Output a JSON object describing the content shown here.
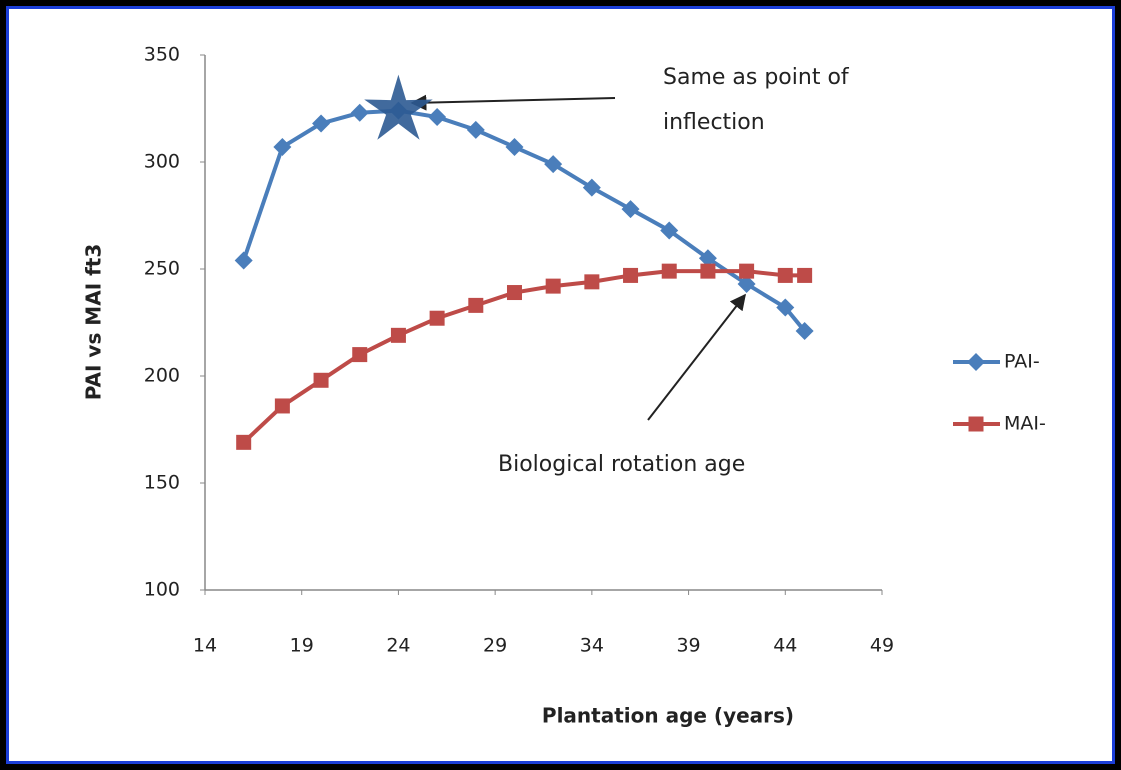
{
  "chart_data": {
    "type": "line",
    "x_label": "Plantation age (years)",
    "y_label": "PAI vs MAI ft3",
    "x": [
      16,
      18,
      20,
      22,
      24,
      26,
      28,
      30,
      32,
      34,
      36,
      38,
      40,
      42,
      44,
      45
    ],
    "series": [
      {
        "name": "PAI-",
        "color": "#4a7ebb",
        "marker": "diamond",
        "values": [
          254,
          307,
          318,
          323,
          324,
          321,
          315,
          307,
          299,
          288,
          278,
          268,
          255,
          243,
          232,
          221
        ]
      },
      {
        "name": "MAI-",
        "color": "#be4b48",
        "marker": "square",
        "values": [
          169,
          186,
          198,
          210,
          219,
          227,
          233,
          239,
          242,
          244,
          247,
          249,
          249,
          249,
          247,
          247
        ]
      }
    ],
    "xlim": [
      14,
      49
    ],
    "xticks": [
      14,
      19,
      24,
      29,
      34,
      39,
      44,
      49
    ],
    "ylim": [
      100,
      350
    ],
    "yticks": [
      100,
      150,
      200,
      250,
      300,
      350
    ],
    "grid": false,
    "legend": "right",
    "annotations": [
      {
        "lines": [
          "Same as point of",
          "inflection"
        ]
      },
      {
        "lines": [
          "Biological rotation age"
        ]
      }
    ]
  }
}
